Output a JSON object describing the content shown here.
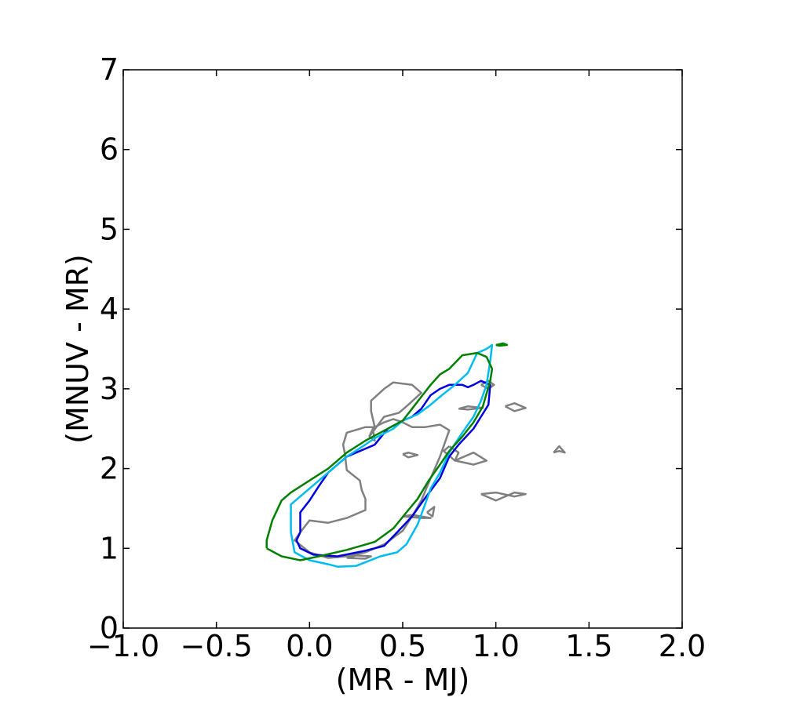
{
  "chart_data": {
    "type": "line",
    "title": "",
    "xlabel": "(MR - MJ)",
    "ylabel": "(MNUV - MR)",
    "xlim": [
      -1.0,
      2.0
    ],
    "ylim": [
      0,
      7
    ],
    "x_ticks": [
      -1.0,
      -0.5,
      0.0,
      0.5,
      1.0,
      1.5,
      2.0
    ],
    "x_tick_labels": [
      "−1.0",
      "−0.5",
      "0.0",
      "0.5",
      "1.0",
      "1.5",
      "2.0"
    ],
    "y_ticks": [
      0,
      1,
      2,
      3,
      4,
      5,
      6,
      7
    ],
    "y_tick_labels": [
      "0",
      "1",
      "2",
      "3",
      "4",
      "5",
      "6",
      "7"
    ],
    "grid": false,
    "legend": "none",
    "series": [
      {
        "color": "#808080",
        "contours": [
          [
            [
              0.0,
              0.95
            ],
            [
              0.1,
              0.88
            ],
            [
              0.2,
              0.9
            ],
            [
              0.3,
              0.95
            ],
            [
              0.4,
              1.05
            ],
            [
              0.5,
              1.22
            ],
            [
              0.55,
              1.4
            ],
            [
              0.6,
              1.6
            ],
            [
              0.65,
              1.88
            ],
            [
              0.7,
              2.15
            ],
            [
              0.75,
              2.48
            ],
            [
              0.7,
              2.55
            ],
            [
              0.62,
              2.52
            ],
            [
              0.55,
              2.52
            ],
            [
              0.5,
              2.58
            ],
            [
              0.45,
              2.62
            ],
            [
              0.4,
              2.58
            ],
            [
              0.35,
              2.52
            ],
            [
              0.3,
              2.52
            ],
            [
              0.2,
              2.45
            ],
            [
              0.18,
              2.3
            ],
            [
              0.19,
              2.18
            ],
            [
              0.2,
              1.98
            ],
            [
              0.27,
              1.85
            ],
            [
              0.28,
              1.73
            ],
            [
              0.3,
              1.62
            ],
            [
              0.3,
              1.48
            ],
            [
              0.2,
              1.38
            ],
            [
              0.1,
              1.32
            ],
            [
              0.0,
              1.35
            ],
            [
              -0.05,
              1.2
            ],
            [
              -0.08,
              1.1
            ],
            [
              0.0,
              0.95
            ]
          ],
          [
            [
              0.32,
              2.4
            ],
            [
              0.34,
              2.5
            ],
            [
              0.35,
              2.35
            ],
            [
              0.32,
              2.4
            ]
          ],
          [
            [
              0.32,
              2.4
            ],
            [
              0.35,
              2.52
            ],
            [
              0.33,
              2.72
            ],
            [
              0.33,
              2.85
            ],
            [
              0.4,
              3.0
            ],
            [
              0.45,
              3.08
            ],
            [
              0.55,
              3.05
            ],
            [
              0.6,
              2.95
            ],
            [
              0.53,
              2.8
            ],
            [
              0.48,
              2.7
            ],
            [
              0.4,
              2.65
            ],
            [
              0.32,
              2.4
            ]
          ],
          [
            [
              0.8,
              2.75
            ],
            [
              0.85,
              2.78
            ],
            [
              0.93,
              2.76
            ],
            [
              0.85,
              2.74
            ],
            [
              0.8,
              2.75
            ]
          ],
          [
            [
              0.75,
              2.28
            ],
            [
              0.8,
              2.2
            ],
            [
              0.78,
              2.1
            ],
            [
              0.72,
              2.22
            ],
            [
              0.75,
              2.28
            ]
          ],
          [
            [
              0.78,
              2.1
            ],
            [
              0.88,
              2.05
            ],
            [
              0.95,
              2.1
            ],
            [
              0.88,
              2.2
            ],
            [
              0.78,
              2.1
            ]
          ],
          [
            [
              0.5,
              2.18
            ],
            [
              0.53,
              2.2
            ],
            [
              0.58,
              2.17
            ],
            [
              0.53,
              2.14
            ],
            [
              0.5,
              2.18
            ]
          ],
          [
            [
              0.5,
              1.4
            ],
            [
              0.6,
              1.38
            ],
            [
              0.65,
              1.38
            ],
            [
              0.55,
              1.42
            ],
            [
              0.5,
              1.4
            ]
          ],
          [
            [
              0.63,
              1.45
            ],
            [
              0.67,
              1.52
            ],
            [
              0.66,
              1.4
            ],
            [
              0.63,
              1.45
            ]
          ],
          [
            [
              0.2,
              0.88
            ],
            [
              0.3,
              0.87
            ],
            [
              0.33,
              0.9
            ],
            [
              0.25,
              0.91
            ],
            [
              0.2,
              0.88
            ]
          ],
          [
            [
              0.92,
              3.05
            ],
            [
              0.96,
              3.1
            ],
            [
              0.99,
              3.05
            ],
            [
              0.96,
              3.0
            ],
            [
              0.92,
              3.05
            ]
          ],
          [
            [
              1.05,
              2.78
            ],
            [
              1.1,
              2.72
            ],
            [
              1.16,
              2.76
            ],
            [
              1.1,
              2.82
            ],
            [
              1.05,
              2.78
            ]
          ],
          [
            [
              0.92,
              1.68
            ],
            [
              1.0,
              1.7
            ],
            [
              1.1,
              1.65
            ],
            [
              1.16,
              1.68
            ],
            [
              1.1,
              1.7
            ],
            [
              1.0,
              1.6
            ],
            [
              0.92,
              1.68
            ]
          ],
          [
            [
              1.31,
              2.2
            ],
            [
              1.34,
              2.28
            ],
            [
              1.37,
              2.2
            ],
            [
              1.34,
              2.22
            ],
            [
              1.31,
              2.2
            ]
          ]
        ]
      },
      {
        "color": "#0000dd",
        "contours": [
          [
            [
              -0.05,
              1.2
            ],
            [
              -0.07,
              1.1
            ],
            [
              -0.05,
              1.0
            ],
            [
              0.02,
              0.92
            ],
            [
              0.15,
              0.9
            ],
            [
              0.3,
              0.97
            ],
            [
              0.4,
              1.03
            ],
            [
              0.47,
              1.2
            ],
            [
              0.55,
              1.4
            ],
            [
              0.62,
              1.63
            ],
            [
              0.7,
              1.88
            ],
            [
              0.75,
              2.15
            ],
            [
              0.8,
              2.3
            ],
            [
              0.88,
              2.5
            ],
            [
              0.92,
              2.65
            ],
            [
              0.96,
              2.8
            ],
            [
              0.97,
              3.05
            ],
            [
              0.92,
              3.1
            ],
            [
              0.88,
              3.05
            ],
            [
              0.85,
              3.02
            ],
            [
              0.82,
              3.05
            ],
            [
              0.75,
              3.05
            ],
            [
              0.7,
              3.0
            ],
            [
              0.65,
              2.92
            ],
            [
              0.6,
              2.75
            ],
            [
              0.55,
              2.65
            ],
            [
              0.5,
              2.6
            ],
            [
              0.42,
              2.5
            ],
            [
              0.35,
              2.3
            ],
            [
              0.2,
              2.15
            ],
            [
              0.1,
              1.95
            ],
            [
              0.05,
              1.78
            ],
            [
              0.0,
              1.6
            ],
            [
              -0.05,
              1.45
            ],
            [
              -0.05,
              1.2
            ]
          ]
        ]
      },
      {
        "color": "#00bbee",
        "contours": [
          [
            [
              -0.1,
              1.2
            ],
            [
              -0.08,
              0.95
            ],
            [
              0.0,
              0.85
            ],
            [
              0.1,
              0.8
            ],
            [
              0.15,
              0.77
            ],
            [
              0.25,
              0.78
            ],
            [
              0.38,
              0.9
            ],
            [
              0.47,
              0.95
            ],
            [
              0.52,
              1.05
            ],
            [
              0.58,
              1.3
            ],
            [
              0.62,
              1.55
            ],
            [
              0.65,
              1.75
            ],
            [
              0.7,
              1.95
            ],
            [
              0.75,
              2.2
            ],
            [
              0.82,
              2.45
            ],
            [
              0.88,
              2.65
            ],
            [
              0.92,
              2.85
            ],
            [
              0.95,
              3.05
            ],
            [
              0.97,
              3.35
            ],
            [
              0.98,
              3.55
            ],
            [
              0.95,
              3.5
            ],
            [
              0.9,
              3.45
            ],
            [
              0.85,
              3.2
            ],
            [
              0.78,
              3.05
            ],
            [
              0.7,
              2.9
            ],
            [
              0.65,
              2.8
            ],
            [
              0.58,
              2.68
            ],
            [
              0.5,
              2.6
            ],
            [
              0.45,
              2.5
            ],
            [
              0.35,
              2.38
            ],
            [
              0.28,
              2.27
            ],
            [
              0.2,
              2.15
            ],
            [
              0.1,
              1.95
            ],
            [
              0.0,
              1.75
            ],
            [
              -0.1,
              1.55
            ],
            [
              -0.1,
              1.2
            ]
          ]
        ]
      },
      {
        "color": "#008000",
        "contours": [
          [
            [
              -0.23,
              1.0
            ],
            [
              -0.15,
              0.9
            ],
            [
              -0.05,
              0.85
            ],
            [
              0.05,
              0.9
            ],
            [
              0.2,
              0.98
            ],
            [
              0.35,
              1.08
            ],
            [
              0.45,
              1.25
            ],
            [
              0.52,
              1.45
            ],
            [
              0.58,
              1.62
            ],
            [
              0.64,
              1.85
            ],
            [
              0.7,
              2.05
            ],
            [
              0.75,
              2.22
            ],
            [
              0.82,
              2.4
            ],
            [
              0.88,
              2.58
            ],
            [
              0.93,
              2.78
            ],
            [
              0.97,
              3.1
            ],
            [
              0.98,
              3.25
            ],
            [
              0.95,
              3.4
            ],
            [
              0.9,
              3.45
            ],
            [
              0.82,
              3.42
            ],
            [
              0.75,
              3.25
            ],
            [
              0.7,
              3.18
            ],
            [
              0.65,
              3.05
            ],
            [
              0.6,
              2.9
            ],
            [
              0.55,
              2.75
            ],
            [
              0.5,
              2.6
            ],
            [
              0.42,
              2.5
            ],
            [
              0.3,
              2.35
            ],
            [
              0.2,
              2.2
            ],
            [
              0.1,
              2.0
            ],
            [
              0.0,
              1.85
            ],
            [
              -0.1,
              1.7
            ],
            [
              -0.15,
              1.6
            ],
            [
              -0.2,
              1.35
            ],
            [
              -0.23,
              1.1
            ],
            [
              -0.23,
              1.0
            ]
          ],
          [
            [
              1.0,
              3.55
            ],
            [
              1.04,
              3.57
            ],
            [
              1.06,
              3.55
            ],
            [
              1.02,
              3.54
            ],
            [
              1.0,
              3.55
            ]
          ]
        ]
      }
    ]
  }
}
